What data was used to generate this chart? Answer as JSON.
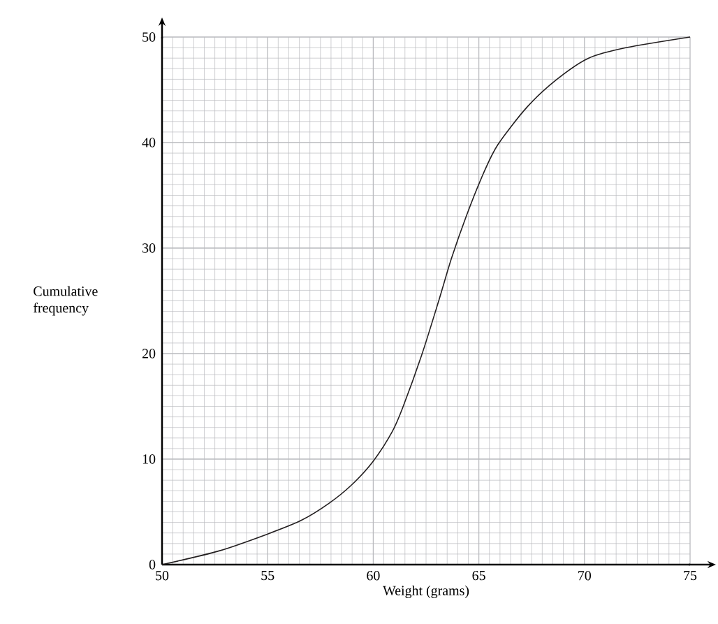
{
  "chart_data": {
    "type": "line",
    "xlabel": "Weight (grams)",
    "ylabel": "Cumulative frequency",
    "x": [
      50,
      52.7,
      55,
      56.6,
      57.9,
      59,
      60,
      60.9,
      61.4,
      62.3,
      63.1,
      63.7,
      64.4,
      65.2,
      65.9,
      67.3,
      68.7,
      70.2,
      72,
      75
    ],
    "series": [
      {
        "color": "#231f20",
        "values": [
          0,
          1.3,
          2.9,
          4.2,
          5.8,
          7.6,
          9.8,
          12.6,
          14.9,
          19.9,
          25,
          29,
          33,
          37,
          39.8,
          43.4,
          46,
          48,
          49,
          50
        ]
      }
    ],
    "xlim": [
      50,
      75
    ],
    "ylim": [
      0,
      50
    ],
    "xticks": [
      50,
      55,
      60,
      65,
      70,
      75
    ],
    "yticks": [
      0,
      10,
      20,
      30,
      40,
      50
    ],
    "grid": true,
    "marker": "none",
    "line_style": "solid"
  }
}
